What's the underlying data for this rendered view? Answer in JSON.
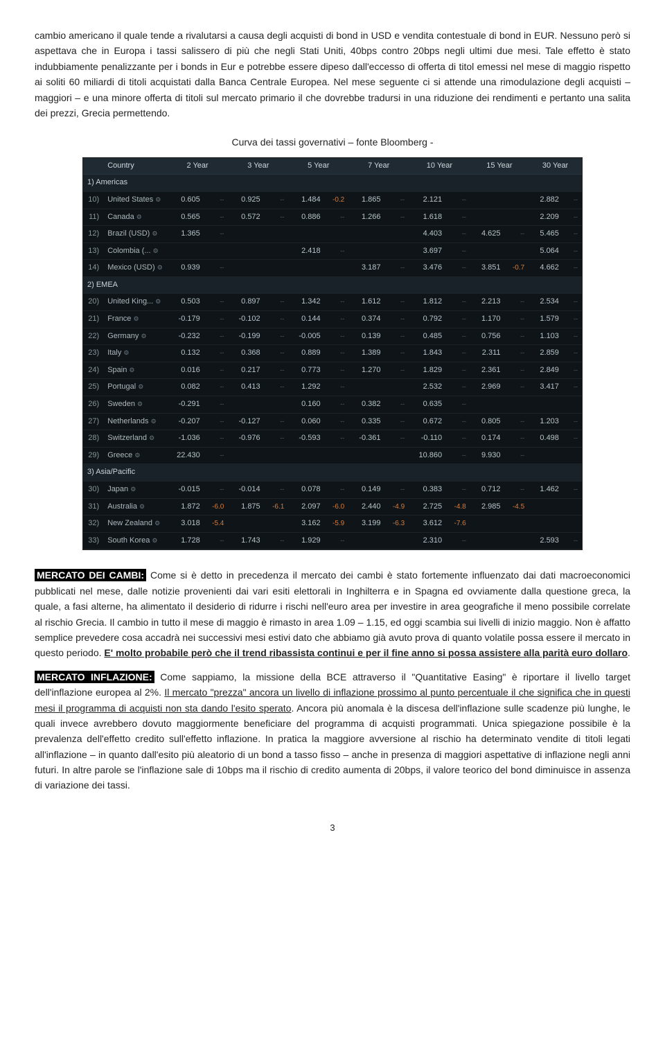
{
  "para1": "cambio americano il quale tende a rivalutarsi a causa degli acquisti di bond in USD e vendita contestuale di bond in EUR. Nessuno però si aspettava che in Europa i tassi salissero di più che negli Stati Uniti, 40bps contro 20bps negli ultimi due mesi. Tale effetto è stato indubbiamente penalizzante per i bonds in Eur e potrebbe essere dipeso dall'eccesso di offerta di titol emessi nel mese di maggio rispetto ai soliti 60 miliardi di titoli acquistati dalla Banca Centrale Europea. Nel mese seguente ci si attende una rimodulazione degli acquisti – maggiori – e una minore offerta di titoli sul mercato primario il che dovrebbe tradursi in una riduzione dei rendimenti e pertanto una salita dei prezzi, Grecia permettendo.",
  "chart_title": "Curva dei tassi governativi – fonte Bloomberg -",
  "table": {
    "headers": [
      "Country",
      "2 Year",
      "3 Year",
      "5 Year",
      "7 Year",
      "10 Year",
      "15 Year",
      "30 Year"
    ],
    "groups": [
      {
        "region": "1) Americas",
        "rows": [
          {
            "i": "10)",
            "c": "United States",
            "v": [
              "0.605",
              "",
              "0.925",
              "",
              "1.484",
              "-0.2",
              "1.865",
              "",
              "2.121",
              "",
              "",
              "",
              "2.882",
              ""
            ]
          },
          {
            "i": "11)",
            "c": "Canada",
            "v": [
              "0.565",
              "",
              "0.572",
              "",
              "0.886",
              "",
              "1.266",
              "",
              "1.618",
              "",
              "",
              "",
              "2.209",
              ""
            ]
          },
          {
            "i": "12)",
            "c": "Brazil (USD)",
            "v": [
              "1.365",
              "",
              "",
              "",
              "",
              "",
              "",
              "",
              "4.403",
              "",
              "4.625",
              "",
              "5.465",
              ""
            ]
          },
          {
            "i": "13)",
            "c": "Colombia (...",
            "v": [
              "",
              "",
              "",
              "",
              "2.418",
              "",
              "",
              "",
              "3.697",
              "",
              "",
              "",
              "5.064",
              ""
            ]
          },
          {
            "i": "14)",
            "c": "Mexico (USD)",
            "v": [
              "0.939",
              "",
              "",
              "",
              "",
              "",
              "3.187",
              "",
              "3.476",
              "",
              "3.851",
              "-0.7",
              "4.662",
              ""
            ]
          }
        ]
      },
      {
        "region": "2) EMEA",
        "rows": [
          {
            "i": "20)",
            "c": "United King...",
            "v": [
              "0.503",
              "",
              "0.897",
              "",
              "1.342",
              "",
              "1.612",
              "",
              "1.812",
              "",
              "2.213",
              "",
              "2.534",
              ""
            ]
          },
          {
            "i": "21)",
            "c": "France",
            "v": [
              "-0.179",
              "",
              "-0.102",
              "",
              "0.144",
              "",
              "0.374",
              "",
              "0.792",
              "",
              "1.170",
              "",
              "1.579",
              ""
            ]
          },
          {
            "i": "22)",
            "c": "Germany",
            "v": [
              "-0.232",
              "",
              "-0.199",
              "",
              "-0.005",
              "",
              "0.139",
              "",
              "0.485",
              "",
              "0.756",
              "",
              "1.103",
              ""
            ]
          },
          {
            "i": "23)",
            "c": "Italy",
            "v": [
              "0.132",
              "",
              "0.368",
              "",
              "0.889",
              "",
              "1.389",
              "",
              "1.843",
              "",
              "2.311",
              "",
              "2.859",
              ""
            ]
          },
          {
            "i": "24)",
            "c": "Spain",
            "v": [
              "0.016",
              "",
              "0.217",
              "",
              "0.773",
              "",
              "1.270",
              "",
              "1.829",
              "",
              "2.361",
              "",
              "2.849",
              ""
            ]
          },
          {
            "i": "25)",
            "c": "Portugal",
            "v": [
              "0.082",
              "",
              "0.413",
              "",
              "1.292",
              "",
              "",
              "",
              "2.532",
              "",
              "2.969",
              "",
              "3.417",
              ""
            ]
          },
          {
            "i": "26)",
            "c": "Sweden",
            "v": [
              "-0.291",
              "",
              "",
              "",
              "0.160",
              "",
              "0.382",
              "",
              "0.635",
              "",
              "",
              "",
              "",
              ""
            ]
          },
          {
            "i": "27)",
            "c": "Netherlands",
            "v": [
              "-0.207",
              "",
              "-0.127",
              "",
              "0.060",
              "",
              "0.335",
              "",
              "0.672",
              "",
              "0.805",
              "",
              "1.203",
              ""
            ]
          },
          {
            "i": "28)",
            "c": "Switzerland",
            "v": [
              "-1.036",
              "",
              "-0.976",
              "",
              "-0.593",
              "",
              "-0.361",
              "",
              "-0.110",
              "",
              "0.174",
              "",
              "0.498",
              ""
            ]
          },
          {
            "i": "29)",
            "c": "Greece",
            "v": [
              "22.430",
              "",
              "",
              "",
              "",
              "",
              "",
              "",
              "10.860",
              "",
              "9.930",
              "",
              "",
              ""
            ]
          }
        ]
      },
      {
        "region": "3) Asia/Pacific",
        "rows": [
          {
            "i": "30)",
            "c": "Japan",
            "v": [
              "-0.015",
              "",
              "-0.014",
              "",
              "0.078",
              "",
              "0.149",
              "",
              "0.383",
              "",
              "0.712",
              "",
              "1.462",
              ""
            ]
          },
          {
            "i": "31)",
            "c": "Australia",
            "v": [
              "1.872",
              "-6.0",
              "1.875",
              "-6.1",
              "2.097",
              "-6.0",
              "2.440",
              "-4.9",
              "2.725",
              "-4.8",
              "2.985",
              "-4.5",
              "",
              ""
            ]
          },
          {
            "i": "32)",
            "c": "New Zealand",
            "v": [
              "3.018",
              "-5.4",
              "",
              "",
              "3.162",
              "-5.9",
              "3.199",
              "-6.3",
              "3.612",
              "-7.6",
              "",
              "",
              "",
              ""
            ]
          },
          {
            "i": "33)",
            "c": "South Korea",
            "v": [
              "1.728",
              "",
              "1.743",
              "",
              "1.929",
              "",
              "",
              "",
              "2.310",
              "",
              "",
              "",
              "2.593",
              ""
            ]
          }
        ]
      }
    ]
  },
  "cambi_label": "MERCATO DEI CAMBI:",
  "cambi_text1": " Come si è detto in precedenza il mercato dei cambi è stato fortemente influenzato dai dati macroeconomici pubblicati nel mese, dalle notizie provenienti dai vari esiti elettorali in Inghilterra e in Spagna ed ovviamente dalla questione greca, la quale, a fasi alterne, ha alimentato il desiderio di ridurre i rischi nell'euro area per investire in area geografiche il meno possibile correlate al rischio Grecia. Il cambio in tutto il mese di maggio è rimasto in area 1.09 – 1.15, ed oggi scambia sui livelli di inizio maggio. Non è affatto semplice prevedere cosa accadrà nei successivi mesi estivi dato che abbiamo già avuto prova di quanto volatile possa essere il mercato in questo periodo. ",
  "cambi_u": "E' molto probabile però che il trend ribassista continui e per il fine anno si possa assistere alla parità euro dollaro",
  "cambi_after": ".",
  "infl_label": "MERCATO INFLAZIONE:",
  "infl_text1": " Come sappiamo, la missione della BCE attraverso il \"Quantitative Easing\" è riportare il livello target dell'inflazione europea al 2%. ",
  "infl_u1": "Il mercato \"prezza\" ancora un livello di inflazione prossimo al punto percentuale il che significa che in questi mesi il programma di acquisti non sta dando l'esito sperato",
  "infl_text2": ". Ancora più anomala è la discesa dell'inflazione sulle scadenze più lunghe, le quali invece avrebbero dovuto maggiormente beneficiare del programma di acquisti programmati. Unica spiegazione possibile è la prevalenza dell'effetto credito sull'effetto inflazione. In pratica la maggiore avversione al rischio ha determinato vendite di titoli legati all'inflazione – in quanto dall'esito più aleatorio di un bond a tasso fisso – anche in presenza di maggiori aspettative di inflazione negli anni futuri. In altre parole se l'inflazione sale di 10bps ma il rischio di credito aumenta di 20bps, il valore teorico del bond diminuisce in assenza di variazione dei tassi.",
  "page": "3"
}
